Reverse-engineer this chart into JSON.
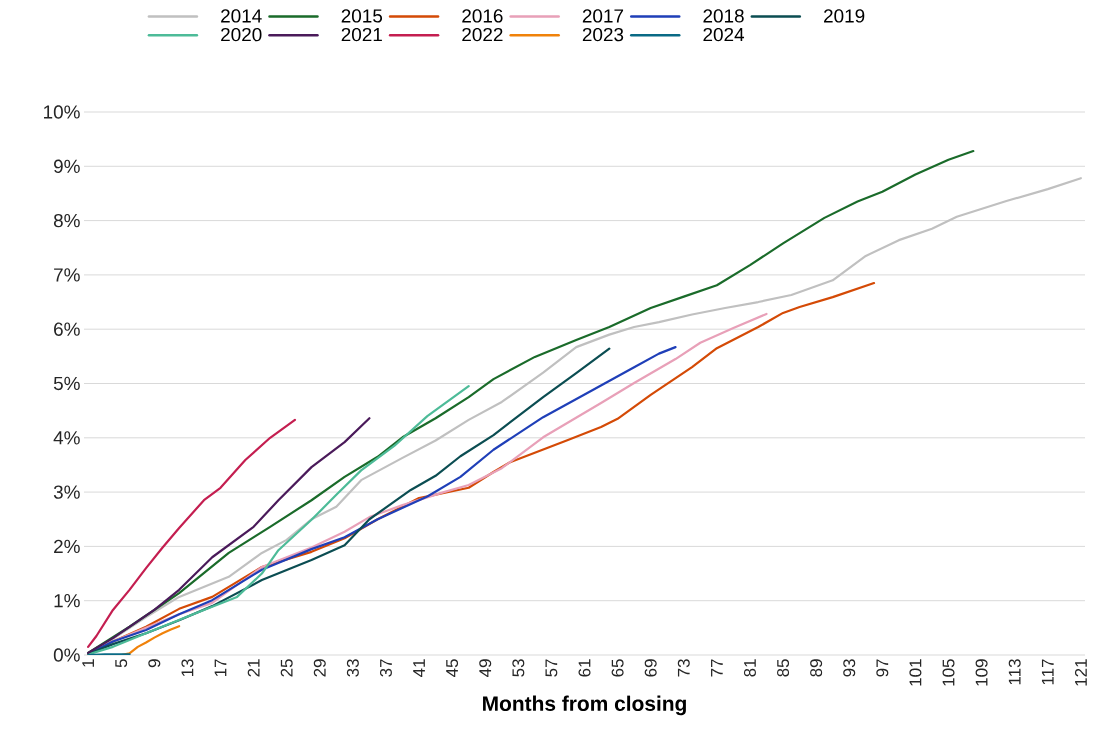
{
  "chart_data": {
    "type": "line",
    "xlabel": "Months from closing",
    "xlim": [
      0.5,
      121.5
    ],
    "ylim": [
      0,
      10
    ],
    "xticks": [
      1,
      5,
      9,
      13,
      17,
      21,
      25,
      29,
      33,
      37,
      41,
      45,
      49,
      53,
      57,
      61,
      65,
      69,
      73,
      77,
      81,
      85,
      89,
      93,
      97,
      101,
      105,
      109,
      113,
      117,
      121
    ],
    "yticks": [
      {
        "value": 0,
        "label": "0%"
      },
      {
        "value": 1,
        "label": "1%"
      },
      {
        "value": 2,
        "label": "2%"
      },
      {
        "value": 3,
        "label": "3%"
      },
      {
        "value": 4,
        "label": "4%"
      },
      {
        "value": 5,
        "label": "5%"
      },
      {
        "value": 6,
        "label": "6%"
      },
      {
        "value": 7,
        "label": "7%"
      },
      {
        "value": 8,
        "label": "8%"
      },
      {
        "value": 9,
        "label": "9%"
      },
      {
        "value": 10,
        "label": "10%"
      }
    ],
    "grid": "y",
    "legend": "top",
    "series": [
      {
        "name": "2014",
        "color": "#c0c0c0",
        "x": [
          1,
          4,
          8,
          12,
          18,
          22,
          25,
          28,
          31,
          34,
          39,
          43,
          47,
          51,
          56,
          60,
          64,
          67,
          70,
          74,
          78,
          82,
          86,
          91,
          95,
          99,
          103,
          106,
          112,
          117,
          121
        ],
        "values": [
          0.04,
          0.3,
          0.7,
          1.07,
          1.44,
          1.88,
          2.12,
          2.5,
          2.73,
          3.22,
          3.63,
          3.95,
          4.33,
          4.66,
          5.2,
          5.67,
          5.9,
          6.04,
          6.13,
          6.27,
          6.39,
          6.5,
          6.63,
          6.9,
          7.35,
          7.64,
          7.85,
          8.07,
          8.36,
          8.58,
          8.78
        ]
      },
      {
        "name": "2015",
        "color": "#1a6b2a",
        "x": [
          1,
          6,
          12,
          18,
          23,
          28,
          32,
          36,
          39,
          43,
          47,
          50,
          55,
          60,
          64,
          69,
          73,
          77,
          81,
          85,
          90,
          94,
          97,
          101,
          105,
          108
        ],
        "values": [
          0.04,
          0.52,
          1.14,
          1.88,
          2.36,
          2.85,
          3.28,
          3.65,
          4.01,
          4.36,
          4.75,
          5.08,
          5.49,
          5.8,
          6.04,
          6.39,
          6.6,
          6.81,
          7.18,
          7.58,
          8.05,
          8.35,
          8.53,
          8.85,
          9.12,
          9.28
        ]
      },
      {
        "name": "2016",
        "color": "#d44a06",
        "x": [
          1,
          4,
          8,
          12,
          16,
          22,
          28,
          32,
          36,
          41,
          47,
          50,
          52,
          59,
          63,
          65,
          69,
          74,
          77,
          82,
          85,
          87,
          91,
          96
        ],
        "values": [
          0.02,
          0.25,
          0.52,
          0.85,
          1.07,
          1.62,
          1.9,
          2.15,
          2.5,
          2.89,
          3.08,
          3.37,
          3.55,
          3.96,
          4.2,
          4.35,
          4.79,
          5.3,
          5.65,
          6.04,
          6.3,
          6.41,
          6.59,
          6.85
        ]
      },
      {
        "name": "2017",
        "color": "#e8a0b8",
        "x": [
          1,
          4,
          8,
          12,
          16,
          22,
          28,
          32,
          35,
          39,
          44,
          47,
          51,
          56,
          63,
          67,
          72,
          75,
          79,
          83
        ],
        "values": [
          0.02,
          0.25,
          0.5,
          0.75,
          0.96,
          1.62,
          1.98,
          2.27,
          2.54,
          2.76,
          3.0,
          3.13,
          3.44,
          4.01,
          4.64,
          5.01,
          5.45,
          5.75,
          6.02,
          6.28
        ]
      },
      {
        "name": "2018",
        "color": "#1f3fb8",
        "x": [
          1,
          4,
          8,
          12,
          16,
          22,
          28,
          32,
          36,
          42,
          46,
          50,
          56,
          62,
          67,
          70,
          72
        ],
        "values": [
          0.02,
          0.25,
          0.46,
          0.75,
          1.01,
          1.57,
          1.95,
          2.17,
          2.5,
          2.92,
          3.28,
          3.78,
          4.38,
          4.88,
          5.3,
          5.55,
          5.67
        ]
      },
      {
        "name": "2019",
        "color": "#0b4d52",
        "x": [
          1,
          4,
          8,
          12,
          16,
          22,
          28,
          32,
          35,
          40,
          43,
          46,
          50,
          56,
          60,
          64
        ],
        "values": [
          0.02,
          0.2,
          0.4,
          0.64,
          0.9,
          1.38,
          1.75,
          2.02,
          2.5,
          3.04,
          3.3,
          3.66,
          4.05,
          4.75,
          5.19,
          5.64
        ]
      },
      {
        "name": "2020",
        "color": "#4dbb98",
        "x": [
          1,
          4,
          8,
          14,
          19,
          22,
          24,
          28,
          31,
          34,
          38,
          42,
          47
        ],
        "values": [
          0.01,
          0.15,
          0.4,
          0.77,
          1.07,
          1.5,
          1.93,
          2.49,
          2.95,
          3.4,
          3.85,
          4.4,
          4.95
        ]
      },
      {
        "name": "2021",
        "color": "#4a1a5a",
        "x": [
          1,
          4,
          9,
          12,
          16,
          21,
          24,
          28,
          32,
          35
        ],
        "values": [
          0.04,
          0.31,
          0.83,
          1.2,
          1.8,
          2.36,
          2.85,
          3.46,
          3.92,
          4.36
        ]
      },
      {
        "name": "2022",
        "color": "#c41e50",
        "x": [
          1,
          2,
          4,
          6,
          8,
          10,
          12,
          15,
          17,
          20,
          23,
          26
        ],
        "values": [
          0.15,
          0.35,
          0.83,
          1.2,
          1.6,
          1.98,
          2.34,
          2.85,
          3.08,
          3.59,
          4.0,
          4.33
        ]
      },
      {
        "name": "2023",
        "color": "#f0820a",
        "x": [
          1,
          5,
          6,
          7,
          8,
          9,
          10,
          11,
          12
        ],
        "values": [
          0,
          0,
          0.03,
          0.15,
          0.23,
          0.32,
          0.4,
          0.47,
          0.53
        ]
      },
      {
        "name": "2024",
        "color": "#0a6a85",
        "x": [
          1,
          3,
          6
        ],
        "values": [
          0,
          0.01,
          0.01
        ]
      }
    ]
  }
}
